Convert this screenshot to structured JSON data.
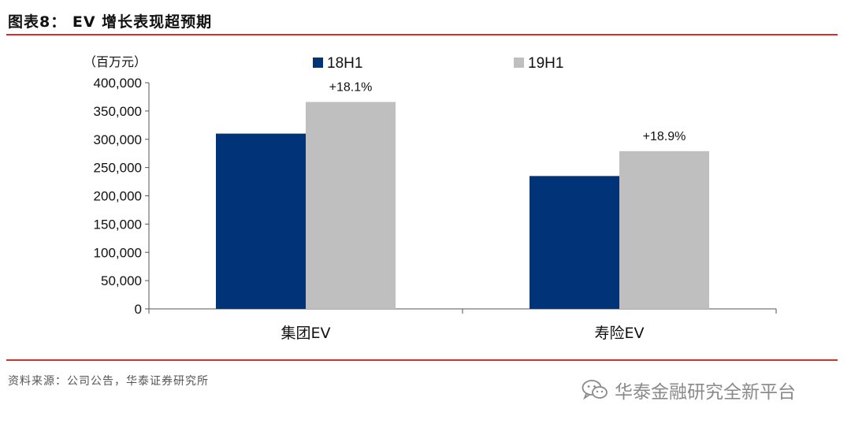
{
  "header": {
    "title": "图表8： EV 增长表现超预期"
  },
  "footer": {
    "source": "资料来源：公司公告，华泰证券研究所"
  },
  "watermark": {
    "text": "华泰金融研究全新平台",
    "icon": "wechat-icon"
  },
  "colors": {
    "rule": "#d0312d",
    "series_18H1": "#003378",
    "series_19H1": "#bfbfbf"
  },
  "chart_data": {
    "type": "bar",
    "unit_label": "（百万元）",
    "categories": [
      "集团EV",
      "寿险EV"
    ],
    "series": [
      {
        "name": "18H1",
        "values": [
          310000,
          235000
        ]
      },
      {
        "name": "19H1",
        "values": [
          366000,
          279000
        ]
      }
    ],
    "annotations": [
      "+18.1%",
      "+18.9%"
    ],
    "ylim": [
      0,
      400000
    ],
    "yticks": [
      0,
      50000,
      100000,
      150000,
      200000,
      250000,
      300000,
      350000,
      400000
    ],
    "ytick_labels": [
      "0",
      "50,000",
      "100,000",
      "150,000",
      "200,000",
      "250,000",
      "300,000",
      "350,000",
      "400,000"
    ],
    "legend_position": "top",
    "grid": false,
    "xlabel": "",
    "ylabel": ""
  }
}
